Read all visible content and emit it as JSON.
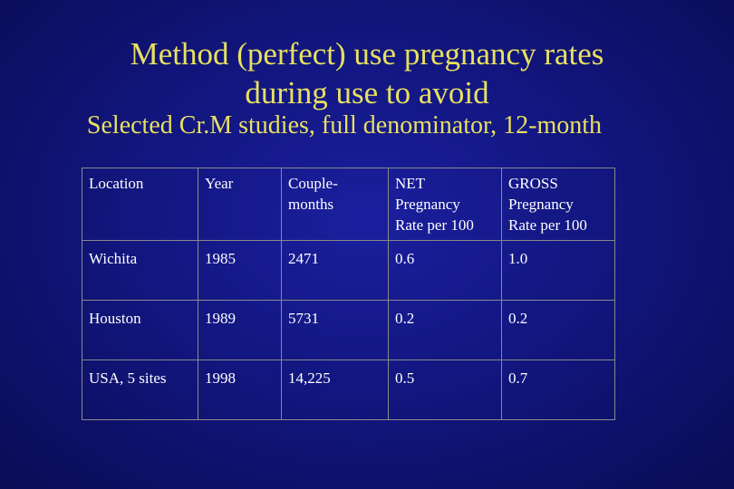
{
  "slide": {
    "title_line1": "Method (perfect) use pregnancy rates",
    "title_line2": "during use to avoid",
    "subtitle": "Selected Cr.M studies, full denominator, 12-month"
  },
  "table": {
    "headers": {
      "location": "Location",
      "year": "Year",
      "couple_months": "Couple-months",
      "net": [
        "NET",
        "Pregnancy",
        "Rate per 100"
      ],
      "gross": [
        "GROSS",
        "Pregnancy",
        "Rate per 100"
      ]
    },
    "rows": [
      {
        "location": "Wichita",
        "year": "1985",
        "couple_months": "2471",
        "net": "0.6",
        "gross": "1.0"
      },
      {
        "location": "Houston",
        "year": "1989",
        "couple_months": "5731",
        "net": "0.2",
        "gross": "0.2"
      },
      {
        "location": "USA, 5 sites",
        "year": "1998",
        "couple_months": "14,225",
        "net": "0.5",
        "gross": "0.7"
      }
    ]
  },
  "colors": {
    "background": "#12167f",
    "title": "#e8e060",
    "table_text": "#ffffff",
    "table_border": "#8a8a8a"
  }
}
